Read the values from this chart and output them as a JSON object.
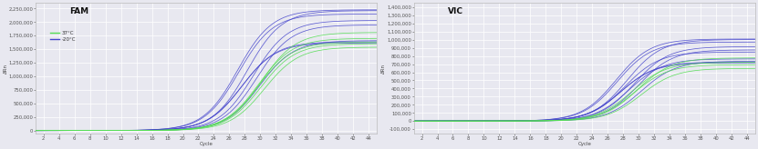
{
  "fam_title": "FAM",
  "vic_title": "VIC",
  "xlabel": "Cycle",
  "ylabel": "ΔRn",
  "fam_ylim": [
    -50000,
    2350000
  ],
  "fam_yticks": [
    0,
    250000,
    500000,
    750000,
    1000000,
    1250000,
    1500000,
    1750000,
    2000000,
    2250000
  ],
  "vic_ylim": [
    -150000,
    1450000
  ],
  "vic_yticks": [
    -100000,
    0,
    100000,
    200000,
    300000,
    400000,
    500000,
    600000,
    700000,
    800000,
    900000,
    1000000,
    1100000,
    1200000,
    1300000,
    1400000
  ],
  "xlim": [
    1,
    45
  ],
  "xticks": [
    2,
    4,
    6,
    8,
    10,
    12,
    14,
    16,
    18,
    20,
    22,
    24,
    26,
    28,
    30,
    32,
    34,
    36,
    38,
    40,
    42,
    44
  ],
  "color_37": "#55dd55",
  "color_m20": "#4444cc",
  "color_m20_light": "#9999ee",
  "bg_color": "#e8e8f0",
  "grid_color": "#ffffff",
  "num_37_fam": 5,
  "num_m20_fam": 8,
  "num_37_vic": 4,
  "num_m20_vic": 10,
  "fam_37_Ct_range": [
    29.0,
    31.5
  ],
  "fam_37_plateau_range": [
    1480000,
    1900000
  ],
  "fam_m20_Ct_range": [
    27.0,
    30.5
  ],
  "fam_m20_plateau_range": [
    1500000,
    2250000
  ],
  "vic_37_Ct_range": [
    28.5,
    31.5
  ],
  "vic_37_plateau_range": [
    620000,
    820000
  ],
  "vic_m20_Ct_range": [
    27.0,
    31.0
  ],
  "vic_m20_plateau_range": [
    660000,
    1020000
  ]
}
